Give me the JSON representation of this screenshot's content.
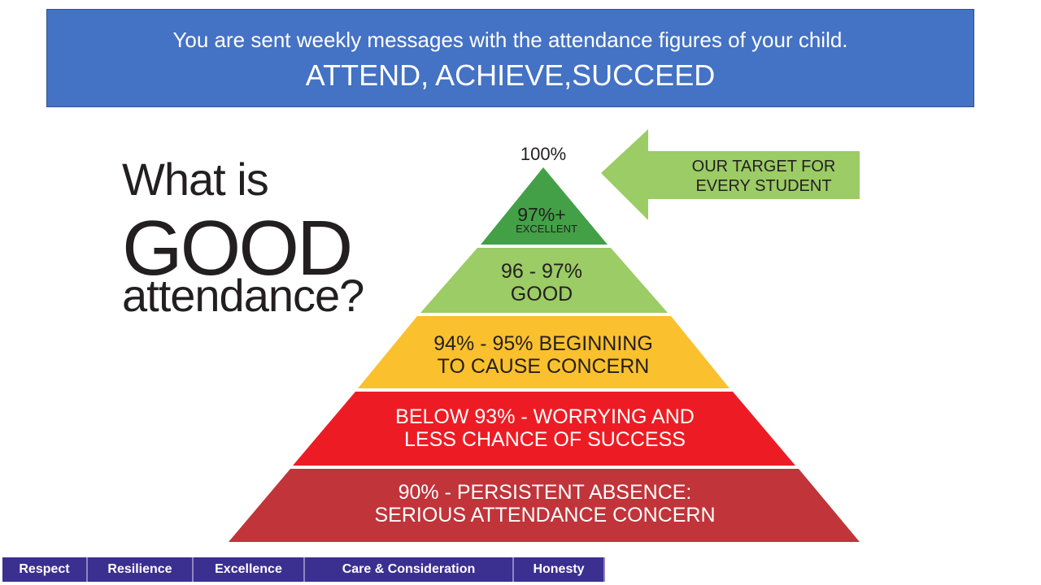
{
  "banner": {
    "line1": "You are sent weekly messages with the attendance figures of your child.",
    "line2": "ATTEND, ACHIEVE,SUCCEED"
  },
  "heading": {
    "line1": "What is",
    "line2": "GOOD",
    "line3": "attendance?"
  },
  "pyramid": {
    "peak_label": "100%",
    "arrow": {
      "line1": "OUR TARGET FOR",
      "line2": "EVERY STUDENT",
      "color": "#9ccc65"
    },
    "tiers": [
      {
        "line1": "97%+",
        "line2": "EXCELLENT",
        "color": "#43a047"
      },
      {
        "line1": "96 - 97%",
        "line2": "GOOD",
        "color": "#9ccc65"
      },
      {
        "line1": "94% - 95% BEGINNING",
        "line2": "TO CAUSE CONCERN",
        "color": "#fbc02d"
      },
      {
        "line1": "BELOW 93% - WORRYING AND",
        "line2": "LESS CHANCE OF SUCCESS",
        "color": "#ed1c24"
      },
      {
        "line1": "90% - PERSISTENT ABSENCE:",
        "line2": "SERIOUS ATTENDANCE CONCERN",
        "color": "#c0343a"
      }
    ]
  },
  "footer": {
    "items": [
      "Respect",
      "Resilience",
      "Excellence",
      "Care & Consideration",
      "Honesty"
    ],
    "color": "#3b2f8f"
  }
}
